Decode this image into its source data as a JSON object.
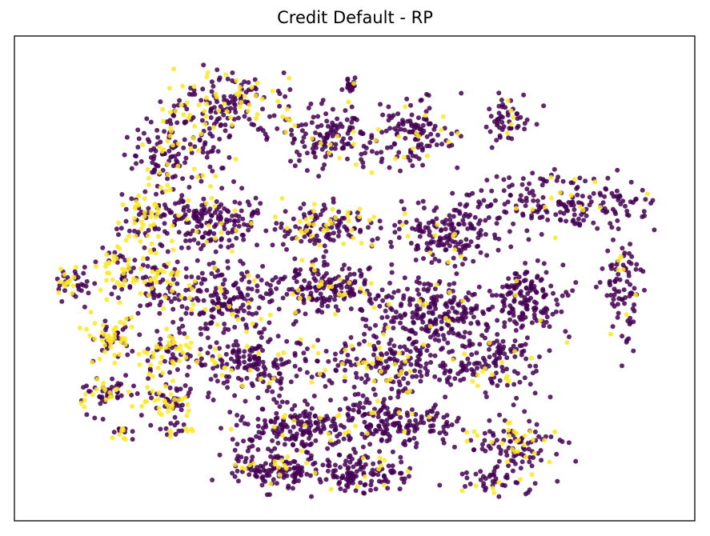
{
  "chart_data": {
    "type": "scatter",
    "title": "Credit Default - RP",
    "xlabel": "",
    "ylabel": "",
    "axis_ticks": "none",
    "grid": false,
    "legend": "none",
    "series": [
      {
        "class": 0,
        "color": "#440154"
      },
      {
        "class": 1,
        "color": "#fde725"
      }
    ],
    "clusters": [
      {
        "x": 3.6,
        "y": 8.9,
        "w": 1.3,
        "h": 0.8,
        "n": 170,
        "yellow": 0.28
      },
      {
        "x": 2.6,
        "y": 7.8,
        "w": 0.9,
        "h": 1.1,
        "n": 140,
        "yellow": 0.22
      },
      {
        "x": 5.5,
        "y": 8.2,
        "w": 1.1,
        "h": 0.8,
        "n": 150,
        "yellow": 0.12
      },
      {
        "x": 5.9,
        "y": 9.3,
        "w": 0.2,
        "h": 0.2,
        "n": 18,
        "yellow": 0.1
      },
      {
        "x": 7.2,
        "y": 8.3,
        "w": 0.8,
        "h": 0.9,
        "n": 120,
        "yellow": 0.1
      },
      {
        "x": 8.9,
        "y": 8.6,
        "w": 0.5,
        "h": 0.5,
        "n": 55,
        "yellow": 0.15
      },
      {
        "x": 9.9,
        "y": 6.7,
        "w": 2.2,
        "h": 0.7,
        "n": 200,
        "yellow": 0.08
      },
      {
        "x": 11.1,
        "y": 4.8,
        "w": 0.4,
        "h": 1.5,
        "n": 90,
        "yellow": 0.1
      },
      {
        "x": 3.2,
        "y": 6.3,
        "w": 1.3,
        "h": 0.8,
        "n": 190,
        "yellow": 0.1
      },
      {
        "x": 5.4,
        "y": 6.2,
        "w": 1.1,
        "h": 0.6,
        "n": 130,
        "yellow": 0.25
      },
      {
        "x": 7.7,
        "y": 6.0,
        "w": 1.0,
        "h": 0.8,
        "n": 170,
        "yellow": 0.08
      },
      {
        "x": 3.5,
        "y": 4.6,
        "w": 1.3,
        "h": 0.9,
        "n": 200,
        "yellow": 0.12
      },
      {
        "x": 5.5,
        "y": 4.8,
        "w": 1.2,
        "h": 0.6,
        "n": 180,
        "yellow": 0.15
      },
      {
        "x": 7.5,
        "y": 4.3,
        "w": 1.2,
        "h": 0.8,
        "n": 220,
        "yellow": 0.05
      },
      {
        "x": 9.3,
        "y": 4.5,
        "w": 0.8,
        "h": 0.9,
        "n": 150,
        "yellow": 0.08
      },
      {
        "x": 4.1,
        "y": 3.1,
        "w": 1.4,
        "h": 0.8,
        "n": 190,
        "yellow": 0.15
      },
      {
        "x": 6.4,
        "y": 3.1,
        "w": 1.3,
        "h": 0.7,
        "n": 180,
        "yellow": 0.12
      },
      {
        "x": 8.5,
        "y": 3.2,
        "w": 1.2,
        "h": 0.8,
        "n": 150,
        "yellow": 0.12
      },
      {
        "x": 4.9,
        "y": 1.7,
        "w": 1.3,
        "h": 0.6,
        "n": 170,
        "yellow": 0.1
      },
      {
        "x": 6.8,
        "y": 1.8,
        "w": 1.4,
        "h": 0.6,
        "n": 180,
        "yellow": 0.1
      },
      {
        "x": 4.6,
        "y": 0.8,
        "w": 1.2,
        "h": 0.5,
        "n": 150,
        "yellow": 0.12
      },
      {
        "x": 6.2,
        "y": 0.7,
        "w": 0.9,
        "h": 0.5,
        "n": 110,
        "yellow": 0.12
      },
      {
        "x": 9.1,
        "y": 1.3,
        "w": 1.0,
        "h": 0.7,
        "n": 110,
        "yellow": 0.18
      },
      {
        "x": 8.6,
        "y": 0.5,
        "w": 0.8,
        "h": 0.3,
        "n": 40,
        "yellow": 0.2
      },
      {
        "x": 2.1,
        "y": 6.4,
        "w": 0.6,
        "h": 0.8,
        "n": 60,
        "yellow": 0.6
      },
      {
        "x": 1.5,
        "y": 5.2,
        "w": 0.5,
        "h": 0.7,
        "n": 60,
        "yellow": 0.55
      },
      {
        "x": 0.6,
        "y": 4.9,
        "w": 0.4,
        "h": 0.4,
        "n": 45,
        "yellow": 0.3
      },
      {
        "x": 2.3,
        "y": 5.0,
        "w": 0.6,
        "h": 0.7,
        "n": 70,
        "yellow": 0.4
      },
      {
        "x": 1.4,
        "y": 3.7,
        "w": 0.6,
        "h": 0.6,
        "n": 70,
        "yellow": 0.55
      },
      {
        "x": 2.5,
        "y": 3.4,
        "w": 0.7,
        "h": 0.6,
        "n": 70,
        "yellow": 0.45
      },
      {
        "x": 1.3,
        "y": 2.5,
        "w": 0.6,
        "h": 0.4,
        "n": 60,
        "yellow": 0.45
      },
      {
        "x": 2.5,
        "y": 2.3,
        "w": 0.6,
        "h": 0.4,
        "n": 60,
        "yellow": 0.4
      },
      {
        "x": 1.6,
        "y": 1.6,
        "w": 0.3,
        "h": 0.2,
        "n": 15,
        "yellow": 0.5
      },
      {
        "x": 2.6,
        "y": 1.7,
        "w": 0.4,
        "h": 0.2,
        "n": 20,
        "yellow": 0.4
      }
    ],
    "xlim": [
      0,
      12
    ],
    "ylim": [
      0,
      10
    ]
  }
}
